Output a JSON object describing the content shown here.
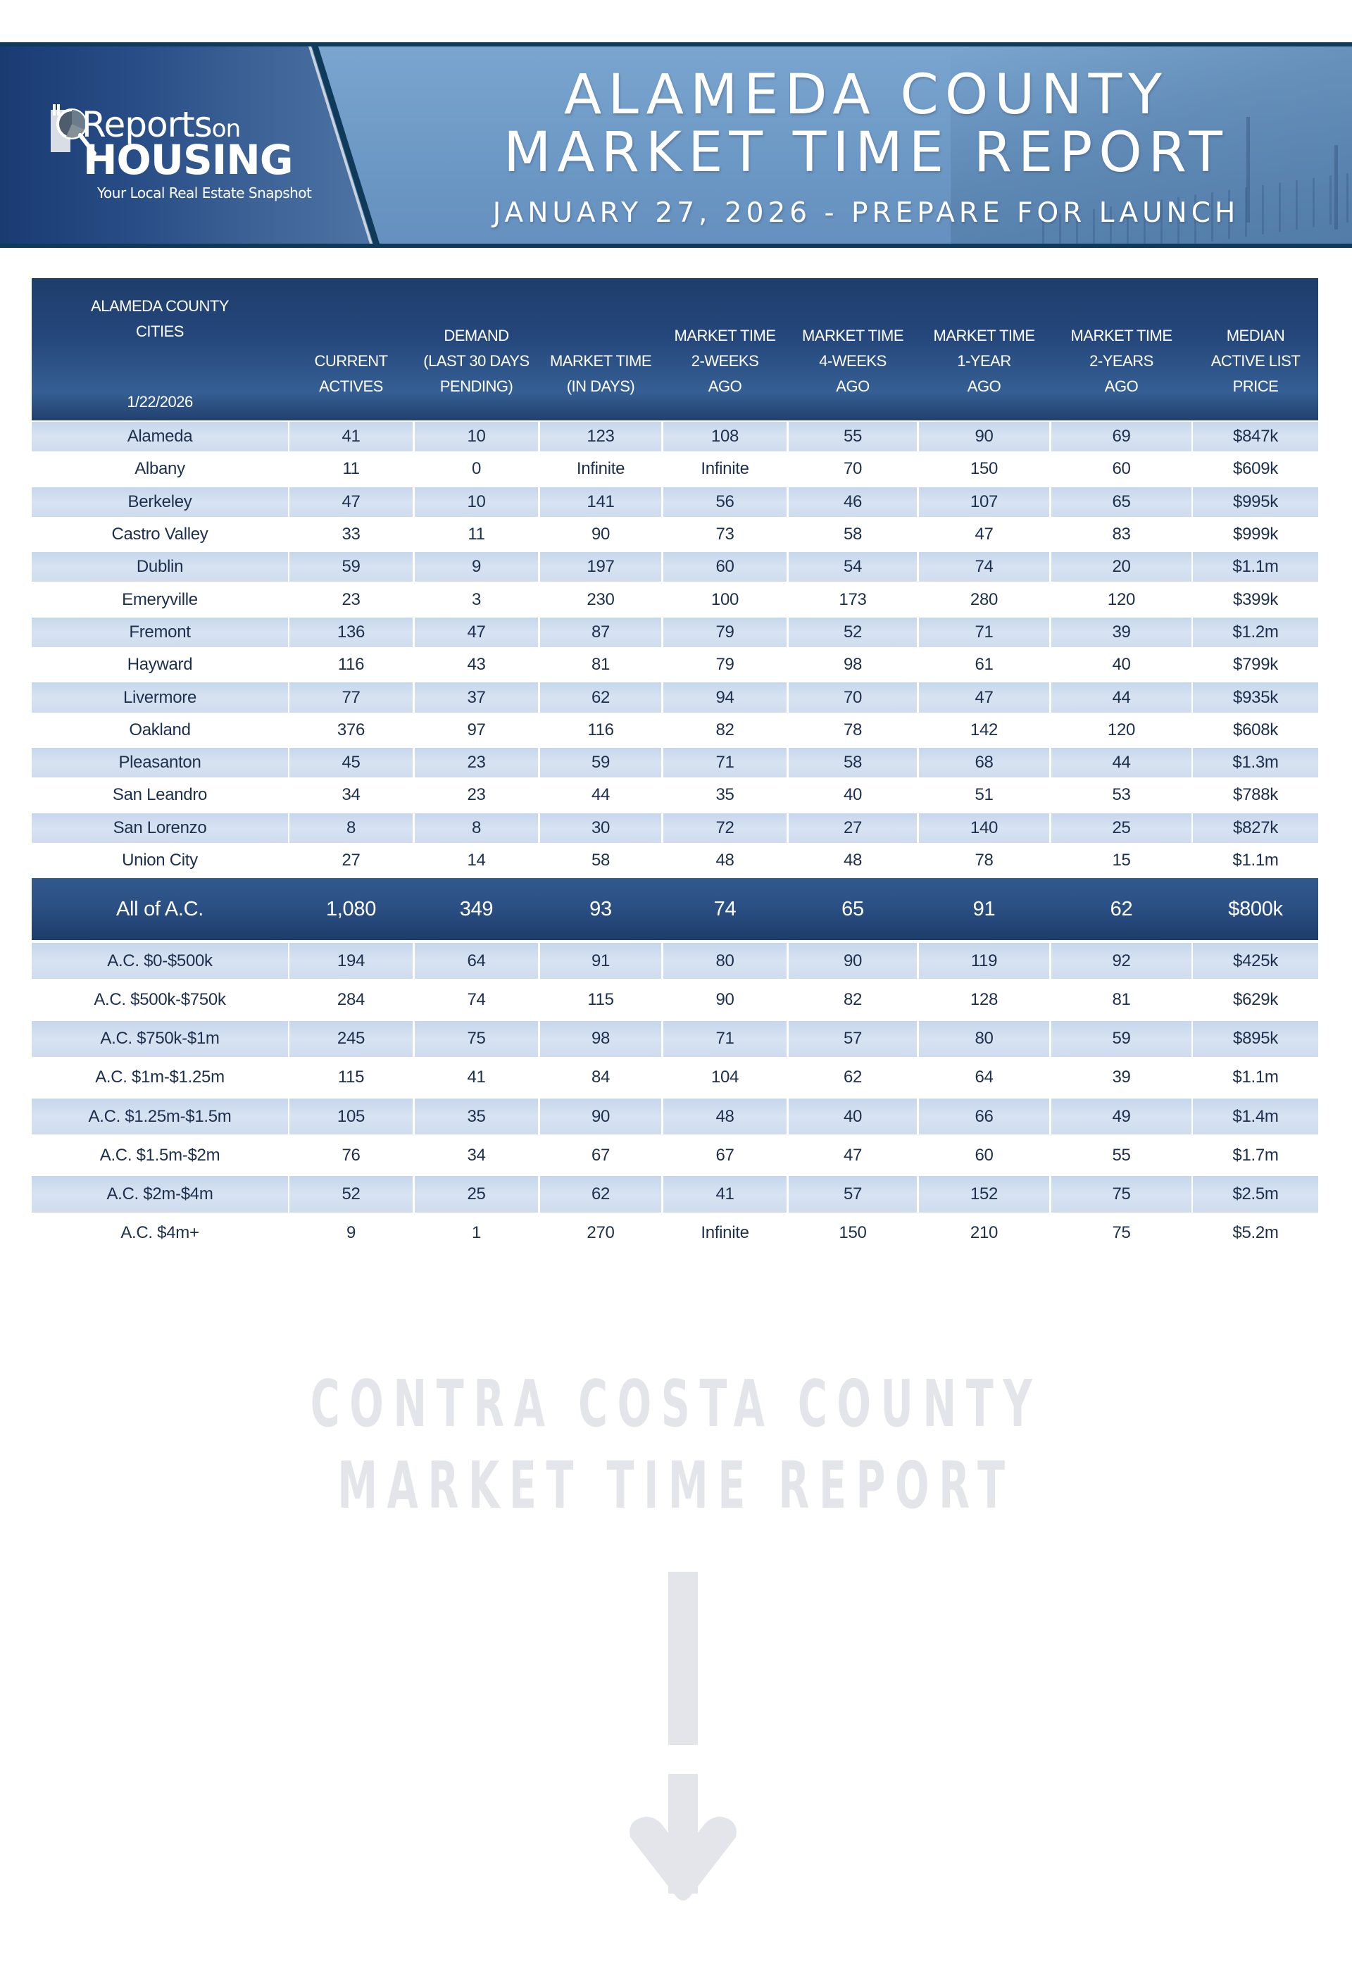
{
  "banner": {
    "logo": {
      "word1": "Reports",
      "word1_suffix": "on",
      "word2": "HOUSING",
      "tagline": "Your Local Real Estate Snapshot",
      "icon": "magnifier-chart-icon"
    },
    "title_line1": "ALAMEDA COUNTY",
    "title_line2": "MARKET TIME REPORT",
    "subtitle": "JANUARY 27, 2026 - PREPARE FOR LAUNCH",
    "colors": {
      "border": "#0f3a5a",
      "panel_dark": "#1a3a72",
      "panel_light": "#7aa5cf"
    }
  },
  "table": {
    "header": {
      "city_col": [
        "ALAMEDA COUNTY",
        "CITIES"
      ],
      "date": "1/22/2026",
      "columns": [
        [
          "CURRENT",
          "ACTIVES"
        ],
        [
          "DEMAND",
          "(LAST 30 DAYS",
          "PENDING)"
        ],
        [
          "MARKET TIME",
          "(IN DAYS)"
        ],
        [
          "MARKET TIME",
          "2-WEEKS",
          "AGO"
        ],
        [
          "MARKET TIME",
          "4-WEEKS",
          "AGO"
        ],
        [
          "MARKET TIME",
          "1-YEAR",
          "AGO"
        ],
        [
          "MARKET TIME",
          "2-YEARS",
          "AGO"
        ],
        [
          "MEDIAN",
          "ACTIVE LIST",
          "PRICE"
        ]
      ]
    },
    "city_rows": [
      [
        "Alameda",
        "41",
        "10",
        "123",
        "108",
        "55",
        "90",
        "69",
        "$847k"
      ],
      [
        "Albany",
        "11",
        "0",
        "Infinite",
        "Infinite",
        "70",
        "150",
        "60",
        "$609k"
      ],
      [
        "Berkeley",
        "47",
        "10",
        "141",
        "56",
        "46",
        "107",
        "65",
        "$995k"
      ],
      [
        "Castro Valley",
        "33",
        "11",
        "90",
        "73",
        "58",
        "47",
        "83",
        "$999k"
      ],
      [
        "Dublin",
        "59",
        "9",
        "197",
        "60",
        "54",
        "74",
        "20",
        "$1.1m"
      ],
      [
        "Emeryville",
        "23",
        "3",
        "230",
        "100",
        "173",
        "280",
        "120",
        "$399k"
      ],
      [
        "Fremont",
        "136",
        "47",
        "87",
        "79",
        "52",
        "71",
        "39",
        "$1.2m"
      ],
      [
        "Hayward",
        "116",
        "43",
        "81",
        "79",
        "98",
        "61",
        "40",
        "$799k"
      ],
      [
        "Livermore",
        "77",
        "37",
        "62",
        "94",
        "70",
        "47",
        "44",
        "$935k"
      ],
      [
        "Oakland",
        "376",
        "97",
        "116",
        "82",
        "78",
        "142",
        "120",
        "$608k"
      ],
      [
        "Pleasanton",
        "45",
        "23",
        "59",
        "71",
        "58",
        "68",
        "44",
        "$1.3m"
      ],
      [
        "San Leandro",
        "34",
        "23",
        "44",
        "35",
        "40",
        "51",
        "53",
        "$788k"
      ],
      [
        "San Lorenzo",
        "8",
        "8",
        "30",
        "72",
        "27",
        "140",
        "25",
        "$827k"
      ],
      [
        "Union City",
        "27",
        "14",
        "58",
        "48",
        "48",
        "78",
        "15",
        "$1.1m"
      ]
    ],
    "summary_row": [
      "All of A.C.",
      "1,080",
      "349",
      "93",
      "74",
      "65",
      "91",
      "62",
      "$800k"
    ],
    "price_rows": [
      [
        "A.C. $0-$500k",
        "194",
        "64",
        "91",
        "80",
        "90",
        "119",
        "92",
        "$425k"
      ],
      [
        "A.C. $500k-$750k",
        "284",
        "74",
        "115",
        "90",
        "82",
        "128",
        "81",
        "$629k"
      ],
      [
        "A.C. $750k-$1m",
        "245",
        "75",
        "98",
        "71",
        "57",
        "80",
        "59",
        "$895k"
      ],
      [
        "A.C. $1m-$1.25m",
        "115",
        "41",
        "84",
        "104",
        "62",
        "64",
        "39",
        "$1.1m"
      ],
      [
        "A.C. $1.25m-$1.5m",
        "105",
        "35",
        "90",
        "48",
        "40",
        "66",
        "49",
        "$1.4m"
      ],
      [
        "A.C. $1.5m-$2m",
        "76",
        "34",
        "67",
        "67",
        "47",
        "60",
        "55",
        "$1.7m"
      ],
      [
        "A.C. $2m-$4m",
        "52",
        "25",
        "62",
        "41",
        "57",
        "152",
        "75",
        "$2.5m"
      ],
      [
        "A.C. $4m+",
        "9",
        "1",
        "270",
        "Infinite",
        "150",
        "210",
        "75",
        "$5.2m"
      ]
    ],
    "colors": {
      "header": "#24467a",
      "row_shaded": "#d0ddef",
      "text": "#1c2f4d"
    }
  },
  "teaser": {
    "line1": "CONTRA COSTA COUNTY",
    "line2": "MARKET TIME REPORT",
    "icon": "arrow-down-icon",
    "color": "#e4e5ea"
  }
}
